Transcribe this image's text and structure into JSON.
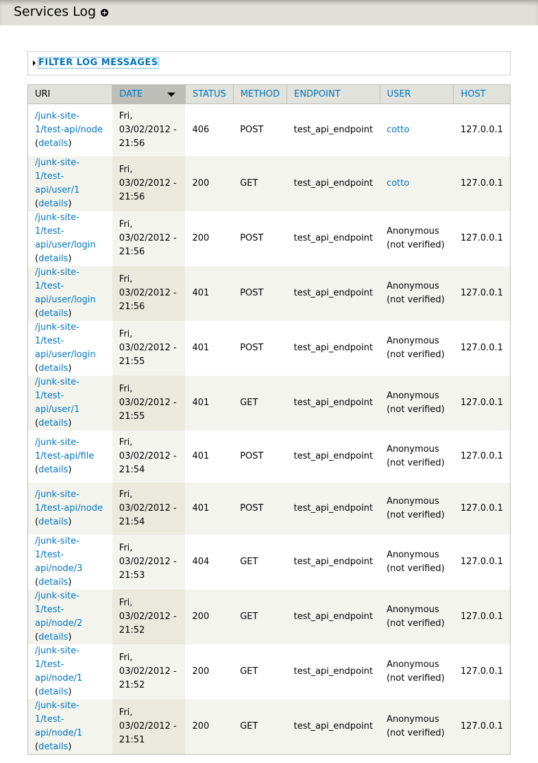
{
  "page": {
    "title": "Services Log",
    "add_icon": "plus-circle-icon"
  },
  "filter": {
    "label": "FILTER LOG MESSAGES"
  },
  "table": {
    "headers": [
      "URI",
      "DATE",
      "STATUS",
      "METHOD",
      "ENDPOINT",
      "USER",
      "HOST"
    ],
    "details_label": "details",
    "rows": [
      {
        "uri": "/junk-site-1/test-api/node",
        "date": "Fri, 03/02/2012 - 21:56",
        "status": "406",
        "method": "POST",
        "endpoint": "test_api_endpoint",
        "user": "cotto",
        "user_link": true,
        "host": "127.0.0.1"
      },
      {
        "uri": "/junk-site-1/test-api/user/1",
        "date": "Fri, 03/02/2012 - 21:56",
        "status": "200",
        "method": "GET",
        "endpoint": "test_api_endpoint",
        "user": "cotto",
        "user_link": true,
        "host": "127.0.0.1"
      },
      {
        "uri": "/junk-site-1/test-api/user/login",
        "date": "Fri, 03/02/2012 - 21:56",
        "status": "200",
        "method": "POST",
        "endpoint": "test_api_endpoint",
        "user": "Anonymous (not verified)",
        "user_link": false,
        "host": "127.0.0.1"
      },
      {
        "uri": "/junk-site-1/test-api/user/login",
        "date": "Fri, 03/02/2012 - 21:56",
        "status": "401",
        "method": "POST",
        "endpoint": "test_api_endpoint",
        "user": "Anonymous (not verified)",
        "user_link": false,
        "host": "127.0.0.1"
      },
      {
        "uri": "/junk-site-1/test-api/user/login",
        "date": "Fri, 03/02/2012 - 21:55",
        "status": "401",
        "method": "POST",
        "endpoint": "test_api_endpoint",
        "user": "Anonymous (not verified)",
        "user_link": false,
        "host": "127.0.0.1"
      },
      {
        "uri": "/junk-site-1/test-api/user/1",
        "date": "Fri, 03/02/2012 - 21:55",
        "status": "401",
        "method": "GET",
        "endpoint": "test_api_endpoint",
        "user": "Anonymous (not verified)",
        "user_link": false,
        "host": "127.0.0.1"
      },
      {
        "uri": "/junk-site-1/test-api/file",
        "date": "Fri, 03/02/2012 - 21:54",
        "status": "401",
        "method": "POST",
        "endpoint": "test_api_endpoint",
        "user": "Anonymous (not verified)",
        "user_link": false,
        "host": "127.0.0.1"
      },
      {
        "uri": "/junk-site-1/test-api/node",
        "date": "Fri, 03/02/2012 - 21:54",
        "status": "401",
        "method": "POST",
        "endpoint": "test_api_endpoint",
        "user": "Anonymous (not verified)",
        "user_link": false,
        "host": "127.0.0.1"
      },
      {
        "uri": "/junk-site-1/test-api/node/3",
        "date": "Fri, 03/02/2012 - 21:53",
        "status": "404",
        "method": "GET",
        "endpoint": "test_api_endpoint",
        "user": "Anonymous (not verified)",
        "user_link": false,
        "host": "127.0.0.1"
      },
      {
        "uri": "/junk-site-1/test-api/node/2",
        "date": "Fri, 03/02/2012 - 21:52",
        "status": "200",
        "method": "GET",
        "endpoint": "test_api_endpoint",
        "user": "Anonymous (not verified)",
        "user_link": false,
        "host": "127.0.0.1"
      },
      {
        "uri": "/junk-site-1/test-api/node/1",
        "date": "Fri, 03/02/2012 - 21:52",
        "status": "200",
        "method": "GET",
        "endpoint": "test_api_endpoint",
        "user": "Anonymous (not verified)",
        "user_link": false,
        "host": "127.0.0.1"
      },
      {
        "uri": "/junk-site-1/test-api/node/1",
        "date": "Fri, 03/02/2012 - 21:51",
        "status": "200",
        "method": "GET",
        "endpoint": "test_api_endpoint",
        "user": "Anonymous (not verified)",
        "user_link": false,
        "host": "127.0.0.1"
      }
    ]
  },
  "colors": {
    "link": "#0074bd",
    "header_bg": "#e1e2dc",
    "sorted_header_bg": "#bebfb9"
  }
}
